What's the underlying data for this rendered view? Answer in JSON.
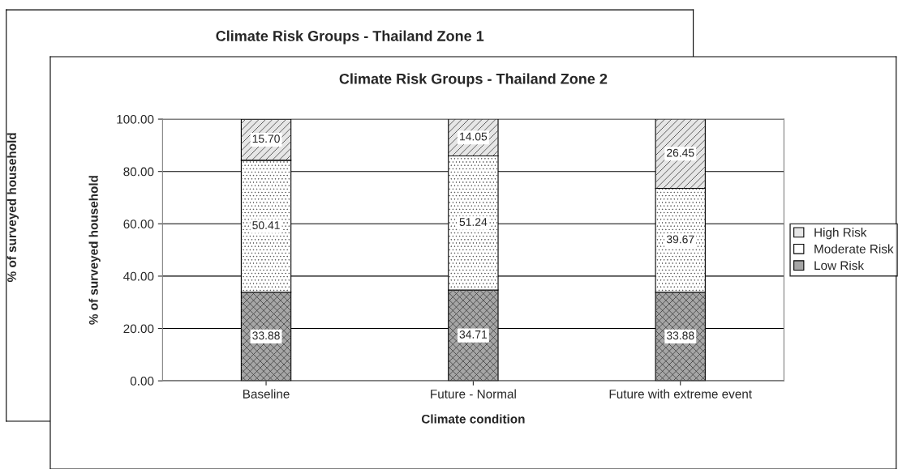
{
  "chart_data": [
    {
      "type": "other",
      "title": "Climate Risk Groups - Thailand Zone 1",
      "ylabel": "% of surveyed household"
    },
    {
      "type": "bar",
      "title": "Climate Risk Groups - Thailand Zone 2",
      "xlabel": "Climate condition",
      "ylabel": "% of surveyed household",
      "categories": [
        "Baseline",
        "Future - Normal",
        "Future with extreme event"
      ],
      "stacked": true,
      "series": [
        {
          "name": "Low Risk",
          "color": "#a6a6a6",
          "values": [
            33.88,
            34.71,
            33.88
          ],
          "value_labels": [
            "33.88",
            "34.71",
            "33.88"
          ]
        },
        {
          "name": "Moderate Risk",
          "color": "#ffffff",
          "values": [
            50.41,
            51.24,
            39.67
          ],
          "value_labels": [
            "50.41",
            "51.24",
            "39.67"
          ]
        },
        {
          "name": "High Risk",
          "color": "#e6e6e6",
          "values": [
            15.7,
            14.05,
            26.45
          ],
          "value_labels": [
            "15.70",
            "14.05",
            "26.45"
          ]
        }
      ],
      "ylim": [
        0,
        100
      ],
      "yticks": [
        {
          "value": 0,
          "label": "0.00"
        },
        {
          "value": 20,
          "label": "20.00"
        },
        {
          "value": 40,
          "label": "40.00"
        },
        {
          "value": 60,
          "label": "60.00"
        },
        {
          "value": 80,
          "label": "80.00"
        },
        {
          "value": 100,
          "label": "100.00"
        }
      ],
      "grid": "y",
      "legend": "right"
    }
  ]
}
